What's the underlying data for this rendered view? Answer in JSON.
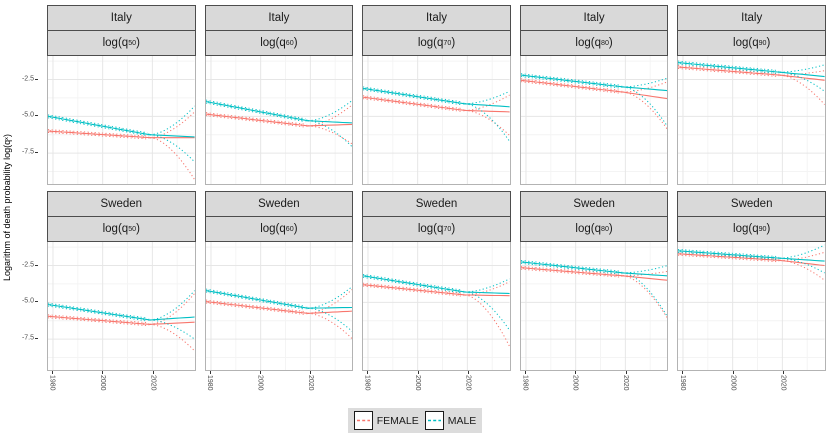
{
  "chart_data": {
    "type": "line",
    "description": "Faceted forecast plot of logarithm of death probabilities by country and age, observed series with dotted confidence bands fanning out in the forecast period",
    "facet_rows": [
      "Italy",
      "Sweden"
    ],
    "facet_cols": [
      {
        "prefix": "log(q",
        "sub": "50",
        "suffix": ")"
      },
      {
        "prefix": "log(q",
        "sub": "60",
        "suffix": ")"
      },
      {
        "prefix": "log(q",
        "sub": "70",
        "suffix": ")"
      },
      {
        "prefix": "log(q",
        "sub": "80",
        "suffix": ")"
      },
      {
        "prefix": "log(q",
        "sub": "90",
        "suffix": ")"
      }
    ],
    "x": {
      "range": [
        1978,
        2037
      ],
      "major_ticks": [
        1980,
        2000,
        2020
      ],
      "minor_ticks": [
        1990,
        2010,
        2030
      ],
      "tick_labels": [
        "1980",
        "2000",
        "2020"
      ],
      "observed_end": 2019
    },
    "y": {
      "range": [
        -9.6,
        -0.9
      ],
      "major_ticks": [
        -2.5,
        -5.0,
        -7.5
      ],
      "minor_ticks": [
        -1.25,
        -3.75,
        -6.25,
        -8.75
      ],
      "tick_labels": [
        "-2.5",
        "-5.0",
        "-7.5"
      ],
      "label_prefix": "Logarithm of death probability log(q",
      "label_sub": "x",
      "label_suffix": ")"
    },
    "legend": [
      {
        "label": "FEMALE",
        "color": "#F8766D"
      },
      {
        "label": "MALE",
        "color": "#00BFC4"
      }
    ],
    "colors": {
      "female": "#F8766D",
      "male": "#00BFC4"
    },
    "panels": [
      {
        "row": "Italy",
        "col": "log(q50)",
        "male": {
          "start": -5.0,
          "at_2019": -6.25,
          "end": -6.4,
          "upper": -4.3,
          "lower": -8.1
        },
        "female": {
          "start": -6.0,
          "at_2019": -6.45,
          "end": -6.45,
          "upper": -4.7,
          "lower": -9.3
        }
      },
      {
        "row": "Italy",
        "col": "log(q60)",
        "male": {
          "start": -4.0,
          "at_2019": -5.3,
          "end": -5.45,
          "upper": -3.9,
          "lower": -7.1
        },
        "female": {
          "start": -4.85,
          "at_2019": -5.65,
          "end": -5.55,
          "upper": -4.2,
          "lower": -6.9
        }
      },
      {
        "row": "Italy",
        "col": "log(q70)",
        "male": {
          "start": -3.1,
          "at_2019": -4.15,
          "end": -4.35,
          "upper": -3.3,
          "lower": -6.7
        },
        "female": {
          "start": -3.7,
          "at_2019": -4.6,
          "end": -4.7,
          "upper": -3.55,
          "lower": -6.3
        }
      },
      {
        "row": "Italy",
        "col": "log(q80)",
        "male": {
          "start": -2.2,
          "at_2019": -3.0,
          "end": -3.25,
          "upper": -2.4,
          "lower": -5.7
        },
        "female": {
          "start": -2.55,
          "at_2019": -3.35,
          "end": -3.8,
          "upper": -2.65,
          "lower": -5.9
        }
      },
      {
        "row": "Italy",
        "col": "log(q90)",
        "male": {
          "start": -1.35,
          "at_2019": -2.0,
          "end": -2.3,
          "upper": -1.5,
          "lower": -3.3
        },
        "female": {
          "start": -1.65,
          "at_2019": -2.2,
          "end": -2.55,
          "upper": -1.9,
          "lower": -4.2
        }
      },
      {
        "row": "Sweden",
        "col": "log(q50)",
        "male": {
          "start": -5.15,
          "at_2019": -6.2,
          "end": -6.0,
          "upper": -4.2,
          "lower": -7.5
        },
        "female": {
          "start": -5.95,
          "at_2019": -6.5,
          "end": -6.35,
          "upper": -4.4,
          "lower": -8.3
        }
      },
      {
        "row": "Sweden",
        "col": "log(q60)",
        "male": {
          "start": -4.2,
          "at_2019": -5.4,
          "end": -5.35,
          "upper": -3.9,
          "lower": -7.0
        },
        "female": {
          "start": -4.95,
          "at_2019": -5.75,
          "end": -5.6,
          "upper": -4.1,
          "lower": -7.5
        }
      },
      {
        "row": "Sweden",
        "col": "log(q70)",
        "male": {
          "start": -3.2,
          "at_2019": -4.3,
          "end": -4.4,
          "upper": -3.4,
          "lower": -6.9
        },
        "female": {
          "start": -3.8,
          "at_2019": -4.5,
          "end": -4.55,
          "upper": -3.6,
          "lower": -8.0
        }
      },
      {
        "row": "Sweden",
        "col": "log(q80)",
        "male": {
          "start": -2.25,
          "at_2019": -3.0,
          "end": -3.2,
          "upper": -2.5,
          "lower": -6.0
        },
        "female": {
          "start": -2.65,
          "at_2019": -3.2,
          "end": -3.5,
          "upper": -2.9,
          "lower": -6.1
        }
      },
      {
        "row": "Sweden",
        "col": "log(q90)",
        "male": {
          "start": -1.5,
          "at_2019": -2.0,
          "end": -2.2,
          "upper": -1.1,
          "lower": -3.0
        },
        "female": {
          "start": -1.7,
          "at_2019": -2.15,
          "end": -2.5,
          "upper": -1.6,
          "lower": -3.5
        }
      }
    ]
  }
}
